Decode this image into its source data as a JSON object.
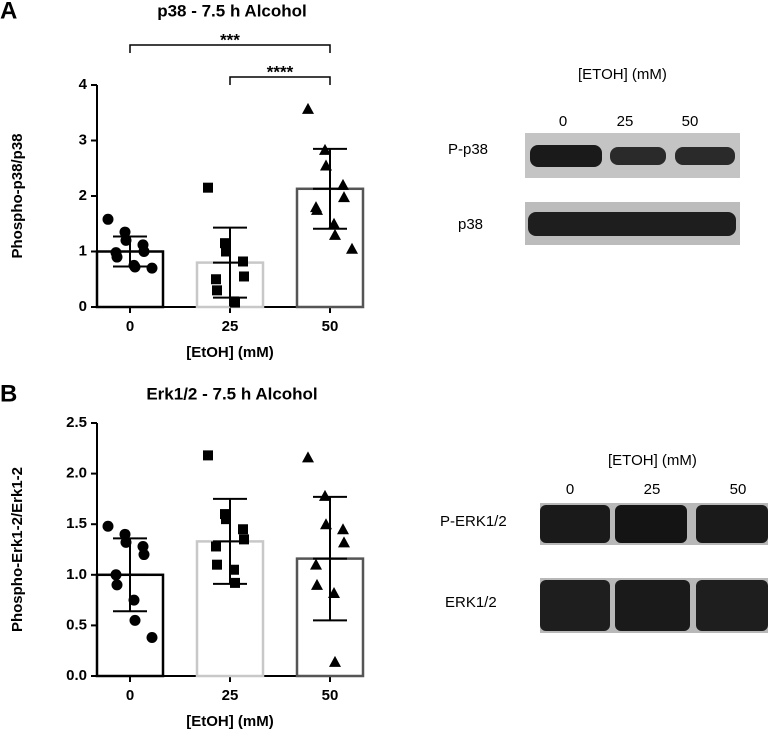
{
  "chart_data": [
    {
      "type": "bar",
      "panel": "A",
      "title": "p38 - 7.5 h Alcohol",
      "xlabel": "[EtOH] (mM)",
      "ylabel": "Phospho-p38/p38",
      "categories": [
        "0",
        "25",
        "50"
      ],
      "values": [
        1.0,
        0.8,
        2.13
      ],
      "errors": [
        0.27,
        0.63,
        0.72
      ],
      "colors": [
        "#000000",
        "#c8c8c8",
        "#555555"
      ],
      "markers": [
        "circle",
        "square",
        "triangle"
      ],
      "points": [
        [
          1.58,
          1.35,
          1.2,
          1.12,
          1.0,
          0.98,
          0.9,
          0.75,
          0.72,
          0.7
        ],
        [
          2.15,
          1.15,
          1.0,
          0.82,
          0.55,
          0.5,
          0.3,
          0.1,
          0.08
        ],
        [
          3.57,
          2.83,
          2.55,
          2.2,
          1.98,
          1.8,
          1.75,
          1.5,
          1.3,
          1.05
        ]
      ],
      "annotations": [
        {
          "text": "****",
          "between": [
            "25",
            "50"
          ]
        },
        {
          "text": "***",
          "between": [
            "0",
            "50"
          ]
        }
      ],
      "ylim": [
        0,
        4
      ],
      "yticks": [
        0,
        1,
        2,
        3,
        4
      ]
    },
    {
      "type": "bar",
      "panel": "B",
      "title": "Erk1/2 - 7.5 h Alcohol",
      "xlabel": "[EtOH] (mM)",
      "ylabel": "Phospho-Erk1-2/Erk1-2",
      "categories": [
        "0",
        "25",
        "50"
      ],
      "values": [
        1.0,
        1.33,
        1.16
      ],
      "errors": [
        0.36,
        0.42,
        0.61
      ],
      "colors": [
        "#000000",
        "#c8c8c8",
        "#555555"
      ],
      "markers": [
        "circle",
        "square",
        "triangle"
      ],
      "points": [
        [
          1.48,
          1.4,
          1.32,
          1.28,
          1.2,
          1.0,
          0.9,
          0.75,
          0.55,
          0.38
        ],
        [
          2.18,
          1.6,
          1.55,
          1.45,
          1.35,
          1.28,
          1.1,
          1.05,
          0.92
        ],
        [
          2.16,
          1.78,
          1.5,
          1.45,
          1.32,
          1.1,
          0.9,
          0.82,
          0.14
        ]
      ],
      "annotations": [],
      "ylim": [
        0,
        2.5
      ],
      "yticks": [
        {
          "value": 0,
          "label": "0.0"
        },
        0.5,
        {
          "value": 1,
          "label": "1.0"
        },
        1.5,
        {
          "value": 2,
          "label": "2.0"
        },
        2.5
      ]
    }
  ],
  "blots": [
    {
      "title": "[ETOH] (mM)",
      "lanes": [
        "0",
        "25",
        "50"
      ],
      "rows": [
        "P-p38",
        "p38"
      ]
    },
    {
      "title": "[ETOH] (mM)",
      "lanes": [
        "0",
        "25",
        "50"
      ],
      "rows": [
        "P-ERK1/2",
        "ERK1/2"
      ]
    }
  ]
}
